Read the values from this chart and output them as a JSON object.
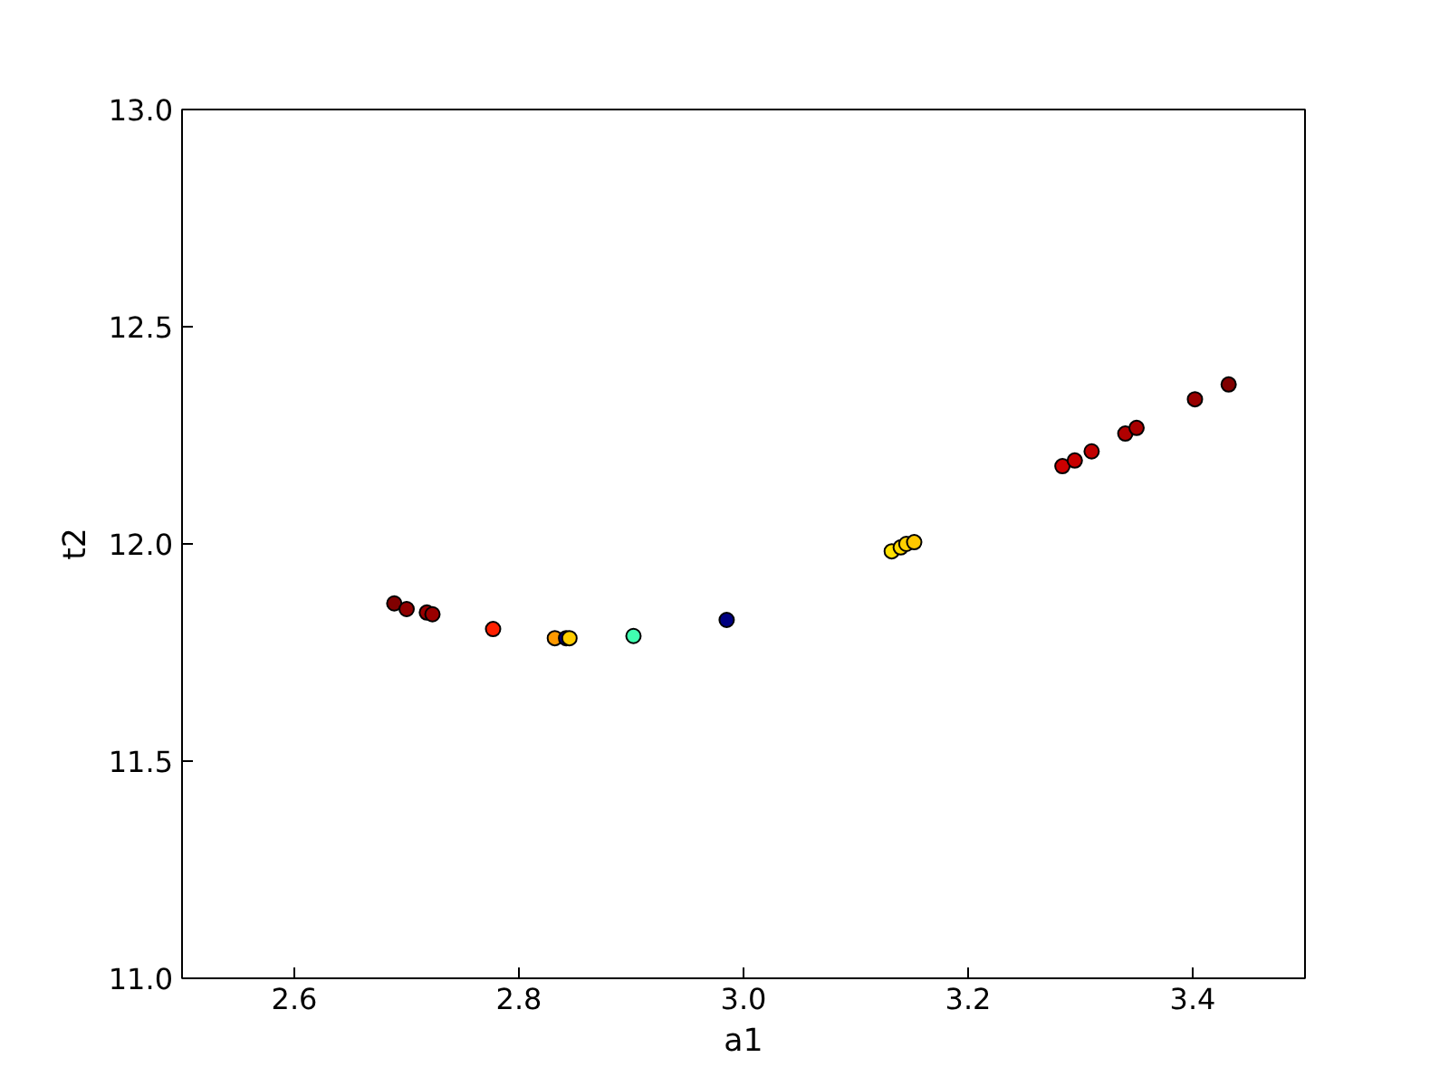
{
  "chart_data": {
    "type": "scatter",
    "xlabel": "a1",
    "ylabel": "t2",
    "x": [
      2.689,
      2.7,
      2.718,
      2.723,
      2.777,
      2.832,
      2.842,
      2.845,
      2.902,
      2.985,
      3.132,
      3.14,
      3.145,
      3.152,
      3.284,
      3.295,
      3.31,
      3.34,
      3.35,
      3.402,
      3.432
    ],
    "values": [
      11.863,
      11.85,
      11.842,
      11.838,
      11.804,
      11.783,
      11.783,
      11.783,
      11.788,
      11.825,
      11.983,
      11.992,
      12.0,
      12.004,
      12.179,
      12.192,
      12.213,
      12.254,
      12.267,
      12.333,
      12.367
    ],
    "colors": [
      "#800000",
      "#900000",
      "#990000",
      "#990000",
      "#ff2000",
      "#ff9900",
      "#000080",
      "#ffcc00",
      "#40ffb0",
      "#000080",
      "#ffe000",
      "#ffd800",
      "#ffd000",
      "#ffc800",
      "#cc0000",
      "#c80000",
      "#c00000",
      "#b00000",
      "#a80000",
      "#990000",
      "#800000"
    ],
    "xlim": [
      2.5,
      3.5
    ],
    "xticks": [
      {
        "value": 2.6,
        "label": "2.6"
      },
      {
        "value": 2.8,
        "label": "2.8"
      },
      {
        "value": 3.0,
        "label": "3.0"
      },
      {
        "value": 3.2,
        "label": "3.2"
      },
      {
        "value": 3.4,
        "label": "3.4"
      }
    ],
    "ylim": [
      11.0,
      13.0
    ],
    "yticks": [
      {
        "value": 11.0,
        "label": "11.0"
      },
      {
        "value": 11.5,
        "label": "11.5"
      },
      {
        "value": 12.0,
        "label": "12.0"
      },
      {
        "value": 12.5,
        "label": "12.5"
      },
      {
        "value": 13.0,
        "label": "13.0"
      }
    ],
    "marker": "circle",
    "grid": false
  }
}
